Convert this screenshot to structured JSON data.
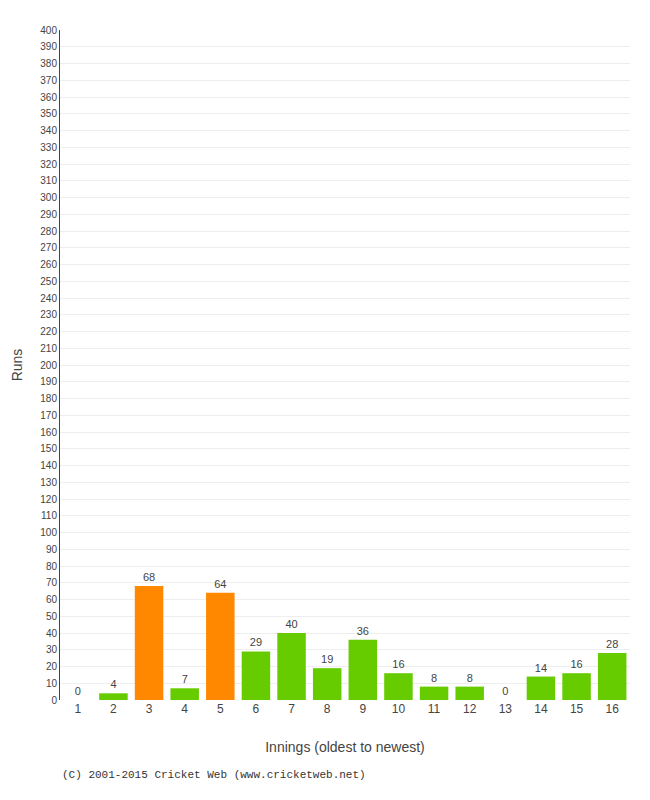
{
  "chart_data": {
    "type": "bar",
    "xlabel": "Innings (oldest to newest)",
    "ylabel": "Runs",
    "categories": [
      1,
      2,
      3,
      4,
      5,
      6,
      7,
      8,
      9,
      10,
      11,
      12,
      13,
      14,
      15,
      16
    ],
    "values": [
      0,
      4,
      68,
      7,
      64,
      29,
      40,
      19,
      36,
      16,
      8,
      8,
      0,
      14,
      16,
      28
    ],
    "colors": [
      "#66cc00",
      "#66cc00",
      "#ff8800",
      "#66cc00",
      "#ff8800",
      "#66cc00",
      "#66cc00",
      "#66cc00",
      "#66cc00",
      "#66cc00",
      "#66cc00",
      "#66cc00",
      "#66cc00",
      "#66cc00",
      "#66cc00",
      "#66cc00"
    ],
    "ylim": [
      0,
      400
    ],
    "yticks": [
      0,
      10,
      20,
      30,
      40,
      50,
      60,
      70,
      80,
      90,
      100,
      110,
      120,
      130,
      140,
      150,
      160,
      170,
      180,
      190,
      200,
      210,
      220,
      230,
      240,
      250,
      260,
      270,
      280,
      290,
      300,
      310,
      320,
      330,
      340,
      350,
      360,
      370,
      380,
      390,
      400
    ],
    "grid": true,
    "data_labels": true,
    "annotations": [
      "(C) 2001-2015 Cricket Web (www.cricketweb.net)"
    ]
  }
}
